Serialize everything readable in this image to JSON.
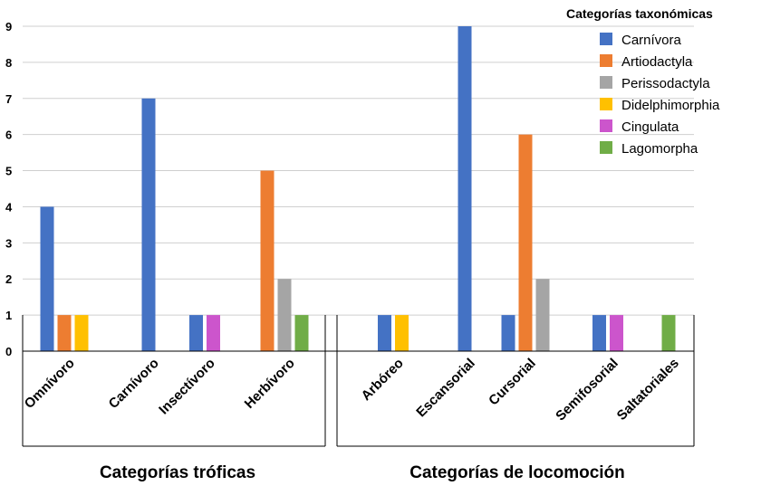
{
  "chart_data": {
    "type": "bar",
    "ylim": [
      0,
      9
    ],
    "yticks": [
      0,
      1,
      2,
      3,
      4,
      5,
      6,
      7,
      8,
      9
    ],
    "grid": true,
    "legend": {
      "title": "Categorías taxonómicas",
      "placement": "top-right",
      "entries": [
        {
          "name": "Carnívora",
          "color": "#4472C4"
        },
        {
          "name": "Artiodactyla",
          "color": "#ED7D31"
        },
        {
          "name": "Perissodactyla",
          "color": "#A5A5A5"
        },
        {
          "name": "Didelphimorphia",
          "color": "#FFC000"
        },
        {
          "name": "Cingulata",
          "color": "#CC55CC"
        },
        {
          "name": "Lagomorpha",
          "color": "#70AD47"
        }
      ]
    },
    "groups": [
      {
        "title": "Categorías tróficas",
        "categories": [
          {
            "label": "Omnívoro",
            "bars": [
              {
                "series": "Carnívora",
                "value": 4
              },
              {
                "series": "Artiodactyla",
                "value": 1
              },
              {
                "series": "Didelphimorphia",
                "value": 1
              }
            ]
          },
          {
            "label": "Carnívoro",
            "bars": [
              {
                "series": "Carnívora",
                "value": 7
              }
            ]
          },
          {
            "label": "Insectívoro",
            "bars": [
              {
                "series": "Carnívora",
                "value": 1
              },
              {
                "series": "Cingulata",
                "value": 1
              }
            ]
          },
          {
            "label": "Herbívoro",
            "bars": [
              {
                "series": "Artiodactyla",
                "value": 5
              },
              {
                "series": "Perissodactyla",
                "value": 2
              },
              {
                "series": "Lagomorpha",
                "value": 1
              }
            ]
          }
        ]
      },
      {
        "title": "Categorías de locomoción",
        "categories": [
          {
            "label": "Arbóreo",
            "bars": [
              {
                "series": "Carnívora",
                "value": 1
              },
              {
                "series": "Didelphimorphia",
                "value": 1
              }
            ]
          },
          {
            "label": "Escansorial",
            "bars": [
              {
                "series": "Carnívora",
                "value": 9
              }
            ]
          },
          {
            "label": "Cursorial",
            "bars": [
              {
                "series": "Carnívora",
                "value": 1
              },
              {
                "series": "Artiodactyla",
                "value": 6
              },
              {
                "series": "Perissodactyla",
                "value": 2
              }
            ]
          },
          {
            "label": "Semifosorial",
            "bars": [
              {
                "series": "Carnívora",
                "value": 1
              },
              {
                "series": "Cingulata",
                "value": 1
              }
            ]
          },
          {
            "label": "Saltatoriales",
            "bars": [
              {
                "series": "Lagomorpha",
                "value": 1
              }
            ]
          }
        ]
      }
    ]
  }
}
